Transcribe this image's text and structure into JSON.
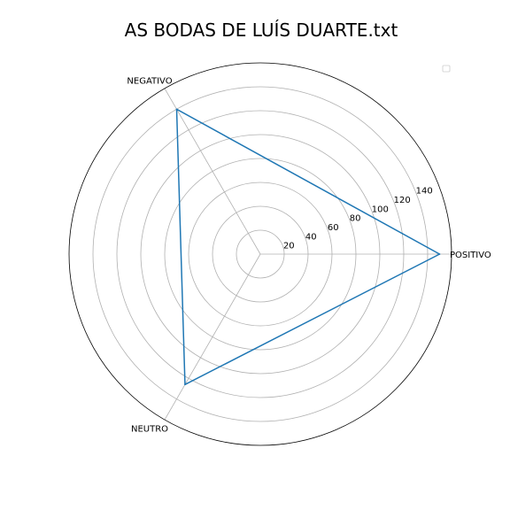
{
  "chart_data": {
    "type": "radar",
    "title": "AS BODAS DE LUÍS DUARTE.txt",
    "categories": [
      "POSITIVO",
      "NEGATIVO",
      "NEUTRO"
    ],
    "series": [
      {
        "values": [
          150,
          140,
          126
        ]
      }
    ],
    "rlim": [
      0,
      160
    ],
    "r_ticks": [
      20,
      40,
      60,
      80,
      100,
      120,
      140
    ],
    "grid": true,
    "legend": "top-right",
    "colors": {
      "series": "#1f77b4",
      "grid": "#b0b0b0",
      "frame": "#000000",
      "legend_border": "#cccccc"
    }
  }
}
